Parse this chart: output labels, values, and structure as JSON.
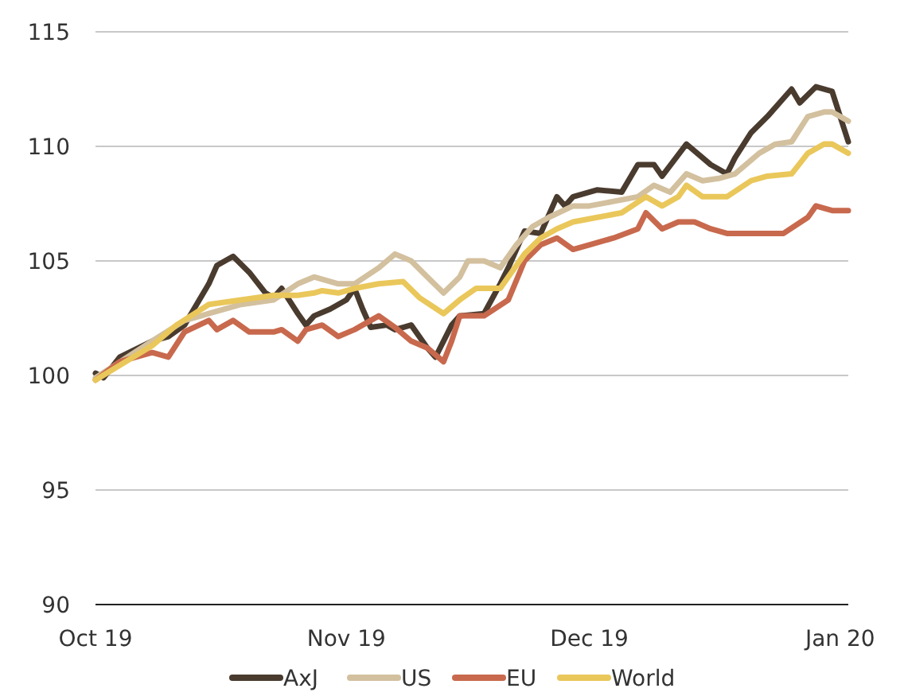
{
  "chart_data": {
    "type": "line",
    "xlim": [
      "2019-10-01",
      "2020-01-02"
    ],
    "xticks": [
      {
        "value": "2019-10-01",
        "label": "Oct 19"
      },
      {
        "value": "2019-11-01",
        "label": "Nov 19"
      },
      {
        "value": "2019-12-01",
        "label": "Dec 19"
      },
      {
        "value": "2020-01-01",
        "label": "Jan 20"
      }
    ],
    "ylim": [
      90,
      115
    ],
    "yticks": [
      90,
      95,
      100,
      105,
      110,
      115
    ],
    "grid": "y",
    "legend": "bottom",
    "marker": "none",
    "line_style": "solid",
    "series": [
      {
        "name": "AxJ",
        "color": "#4a3b2f",
        "x": [
          "2019-10-01",
          "2019-10-02",
          "2019-10-04",
          "2019-10-08",
          "2019-10-10",
          "2019-10-12",
          "2019-10-15",
          "2019-10-16",
          "2019-10-18",
          "2019-10-20",
          "2019-10-22",
          "2019-10-23",
          "2019-10-24",
          "2019-10-26",
          "2019-10-27",
          "2019-10-28",
          "2019-10-30",
          "2019-11-01",
          "2019-11-02",
          "2019-11-03",
          "2019-11-04",
          "2019-11-06",
          "2019-11-07",
          "2019-11-09",
          "2019-11-11",
          "2019-11-12",
          "2019-11-14",
          "2019-11-15",
          "2019-11-18",
          "2019-11-20",
          "2019-11-21",
          "2019-11-23",
          "2019-11-25",
          "2019-11-27",
          "2019-11-28",
          "2019-11-29",
          "2019-12-02",
          "2019-12-05",
          "2019-12-07",
          "2019-12-09",
          "2019-12-10",
          "2019-12-13",
          "2019-12-16",
          "2019-12-18",
          "2019-12-19",
          "2019-12-21",
          "2019-12-23",
          "2019-12-26",
          "2019-12-27",
          "2019-12-29",
          "2019-12-31",
          "2020-01-01",
          "2020-01-02"
        ],
        "values": [
          100.1,
          99.9,
          100.8,
          101.5,
          101.7,
          102.2,
          104.0,
          104.8,
          105.2,
          104.5,
          103.6,
          103.4,
          103.8,
          102.7,
          102.2,
          102.6,
          102.9,
          103.3,
          103.8,
          102.9,
          102.1,
          102.2,
          102.0,
          102.2,
          101.2,
          100.8,
          102.2,
          102.6,
          102.7,
          104.0,
          104.7,
          106.3,
          106.2,
          107.8,
          107.4,
          107.8,
          108.1,
          108.0,
          109.2,
          109.2,
          108.7,
          110.1,
          109.2,
          108.8,
          109.5,
          110.6,
          111.3,
          112.5,
          111.9,
          112.6,
          112.4,
          111.3,
          110.2
        ]
      },
      {
        "name": "US",
        "color": "#d3c09e",
        "x": [
          "2019-10-01",
          "2019-10-08",
          "2019-10-12",
          "2019-10-15",
          "2019-10-19",
          "2019-10-23",
          "2019-10-26",
          "2019-10-28",
          "2019-10-31",
          "2019-11-02",
          "2019-11-05",
          "2019-11-07",
          "2019-11-09",
          "2019-11-11",
          "2019-11-13",
          "2019-11-15",
          "2019-11-16",
          "2019-11-18",
          "2019-11-20",
          "2019-11-22",
          "2019-11-24",
          "2019-11-26",
          "2019-11-29",
          "2019-12-01",
          "2019-12-04",
          "2019-12-07",
          "2019-12-09",
          "2019-12-11",
          "2019-12-13",
          "2019-12-15",
          "2019-12-17",
          "2019-12-19",
          "2019-12-22",
          "2019-12-24",
          "2019-12-26",
          "2019-12-28",
          "2019-12-30",
          "2019-12-31",
          "2020-01-02"
        ],
        "values": [
          99.9,
          101.5,
          102.4,
          102.7,
          103.1,
          103.3,
          104.0,
          104.3,
          104.0,
          104.0,
          104.7,
          105.3,
          105.0,
          104.3,
          103.6,
          104.3,
          105.0,
          105.0,
          104.7,
          105.7,
          106.5,
          106.9,
          107.4,
          107.4,
          107.6,
          107.8,
          108.3,
          108.0,
          108.8,
          108.5,
          108.6,
          108.8,
          109.7,
          110.1,
          110.2,
          111.3,
          111.5,
          111.5,
          111.1
        ]
      },
      {
        "name": "EU",
        "color": "#c8694d",
        "x": [
          "2019-10-01",
          "2019-10-04",
          "2019-10-08",
          "2019-10-10",
          "2019-10-12",
          "2019-10-15",
          "2019-10-16",
          "2019-10-18",
          "2019-10-20",
          "2019-10-23",
          "2019-10-24",
          "2019-10-26",
          "2019-10-27",
          "2019-10-29",
          "2019-10-31",
          "2019-11-02",
          "2019-11-05",
          "2019-11-07",
          "2019-11-09",
          "2019-11-11",
          "2019-11-13",
          "2019-11-14",
          "2019-11-15",
          "2019-11-18",
          "2019-11-21",
          "2019-11-23",
          "2019-11-25",
          "2019-11-27",
          "2019-11-29",
          "2019-12-01",
          "2019-12-04",
          "2019-12-07",
          "2019-12-08",
          "2019-12-10",
          "2019-12-12",
          "2019-12-14",
          "2019-12-16",
          "2019-12-18",
          "2019-12-21",
          "2019-12-25",
          "2019-12-28",
          "2019-12-29",
          "2019-12-31",
          "2020-01-02"
        ],
        "values": [
          99.8,
          100.6,
          101.0,
          100.8,
          101.9,
          102.4,
          102.0,
          102.4,
          101.9,
          101.9,
          102.0,
          101.5,
          102.0,
          102.2,
          101.7,
          102.0,
          102.6,
          102.1,
          101.5,
          101.2,
          100.6,
          101.5,
          102.6,
          102.6,
          103.3,
          105.0,
          105.7,
          106.0,
          105.5,
          105.7,
          106.0,
          106.4,
          107.1,
          106.4,
          106.7,
          106.7,
          106.4,
          106.2,
          106.2,
          106.2,
          106.9,
          107.4,
          107.2,
          107.2
        ]
      },
      {
        "name": "World",
        "color": "#eac75a",
        "x": [
          "2019-10-01",
          "2019-10-08",
          "2019-10-11",
          "2019-10-15",
          "2019-10-19",
          "2019-10-23",
          "2019-10-26",
          "2019-10-28",
          "2019-10-29",
          "2019-10-31",
          "2019-11-02",
          "2019-11-05",
          "2019-11-08",
          "2019-11-10",
          "2019-11-13",
          "2019-11-15",
          "2019-11-17",
          "2019-11-20",
          "2019-11-23",
          "2019-11-25",
          "2019-11-27",
          "2019-11-29",
          "2019-12-02",
          "2019-12-05",
          "2019-12-08",
          "2019-12-10",
          "2019-12-12",
          "2019-12-13",
          "2019-12-15",
          "2019-12-18",
          "2019-12-21",
          "2019-12-23",
          "2019-12-26",
          "2019-12-28",
          "2019-12-30",
          "2019-12-31",
          "2020-01-02"
        ],
        "values": [
          99.8,
          101.3,
          102.2,
          103.1,
          103.3,
          103.5,
          103.5,
          103.6,
          103.7,
          103.6,
          103.8,
          104.0,
          104.1,
          103.4,
          102.7,
          103.3,
          103.8,
          103.8,
          105.3,
          106.0,
          106.4,
          106.7,
          106.9,
          107.1,
          107.8,
          107.4,
          107.8,
          108.3,
          107.8,
          107.8,
          108.5,
          108.7,
          108.8,
          109.7,
          110.1,
          110.1,
          109.7
        ]
      }
    ]
  }
}
